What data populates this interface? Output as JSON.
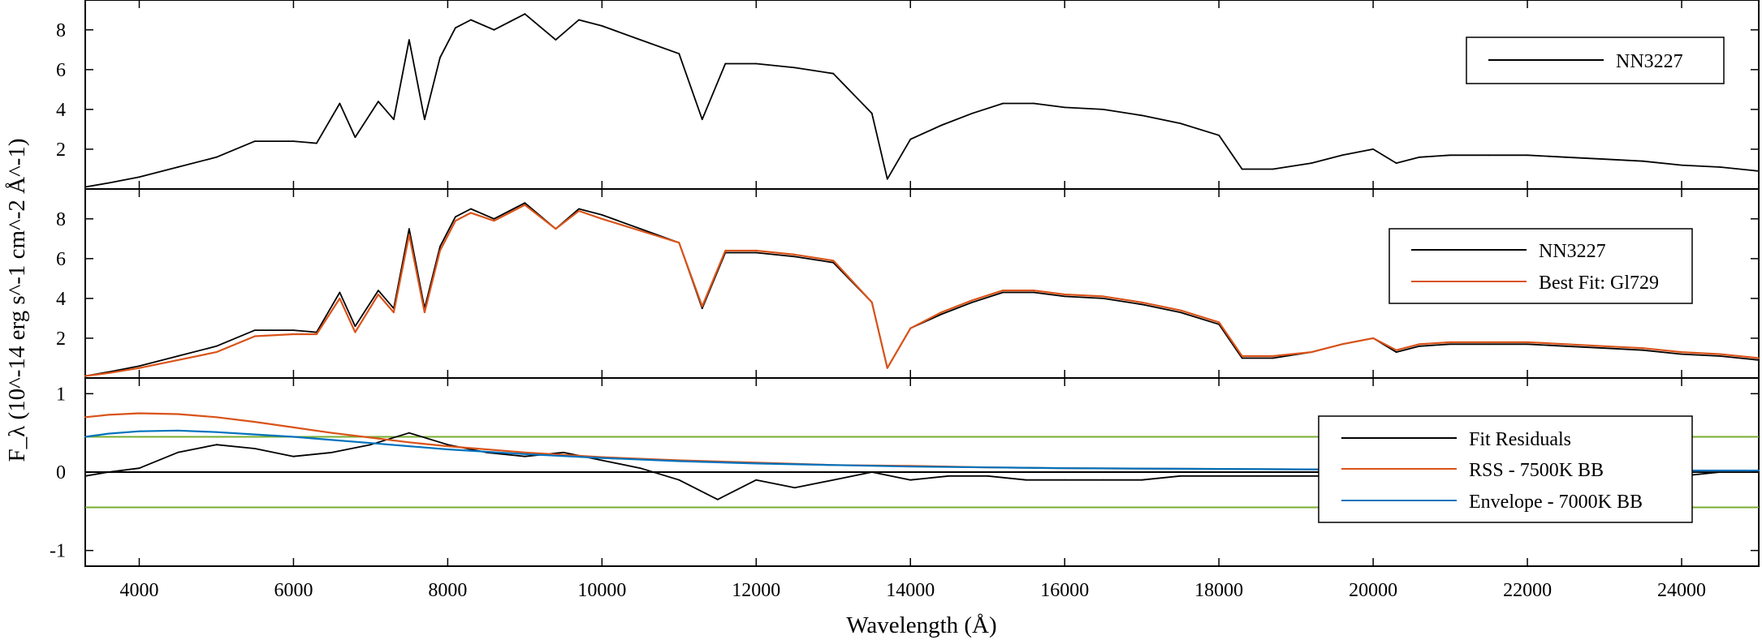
{
  "chart_data": [
    {
      "type": "line",
      "panel": "top",
      "yticks": [
        "2",
        "4",
        "6",
        "8"
      ],
      "ylim": [
        0,
        9.5
      ],
      "xlim": [
        3300,
        25000
      ],
      "grid": false,
      "legend_position": "top-right",
      "series": [
        {
          "name": "NN3227",
          "color": "#000000",
          "x": [
            3300,
            3600,
            4000,
            4500,
            5000,
            5500,
            6000,
            6300,
            6600,
            6800,
            7100,
            7300,
            7500,
            7700,
            7900,
            8100,
            8300,
            8600,
            9000,
            9400,
            9700,
            10000,
            10500,
            11000,
            11300,
            11600,
            12000,
            12500,
            13000,
            13500,
            13700,
            14000,
            14400,
            14800,
            15200,
            15600,
            16000,
            16500,
            17000,
            17500,
            18000,
            18300,
            18700,
            19200,
            19600,
            20000,
            20300,
            20600,
            21000,
            21500,
            22000,
            22500,
            23000,
            23500,
            24000,
            24500,
            25000
          ],
          "y": [
            0.1,
            0.3,
            0.6,
            1.1,
            1.6,
            2.4,
            2.4,
            2.3,
            4.3,
            2.6,
            4.4,
            3.5,
            7.5,
            3.5,
            6.6,
            8.1,
            8.5,
            8.0,
            8.8,
            7.5,
            8.5,
            8.2,
            7.5,
            6.8,
            3.5,
            6.3,
            6.3,
            6.1,
            5.8,
            3.8,
            0.5,
            2.5,
            3.2,
            3.8,
            4.3,
            4.3,
            4.1,
            4.0,
            3.7,
            3.3,
            2.7,
            1.0,
            1.0,
            1.3,
            1.7,
            2.0,
            1.3,
            1.6,
            1.7,
            1.7,
            1.7,
            1.6,
            1.5,
            1.4,
            1.2,
            1.1,
            0.9
          ]
        }
      ]
    },
    {
      "type": "line",
      "panel": "middle",
      "yticks": [
        "2",
        "4",
        "6",
        "8"
      ],
      "ylim": [
        0,
        9.5
      ],
      "xlim": [
        3300,
        25000
      ],
      "grid": false,
      "legend_position": "top-right",
      "series": [
        {
          "name": "NN3227",
          "color": "#000000",
          "x": [
            3300,
            3600,
            4000,
            4500,
            5000,
            5500,
            6000,
            6300,
            6600,
            6800,
            7100,
            7300,
            7500,
            7700,
            7900,
            8100,
            8300,
            8600,
            9000,
            9400,
            9700,
            10000,
            10500,
            11000,
            11300,
            11600,
            12000,
            12500,
            13000,
            13500,
            13700,
            14000,
            14400,
            14800,
            15200,
            15600,
            16000,
            16500,
            17000,
            17500,
            18000,
            18300,
            18700,
            19200,
            19600,
            20000,
            20300,
            20600,
            21000,
            21500,
            22000,
            22500,
            23000,
            23500,
            24000,
            24500,
            25000
          ],
          "y": [
            0.1,
            0.3,
            0.6,
            1.1,
            1.6,
            2.4,
            2.4,
            2.3,
            4.3,
            2.6,
            4.4,
            3.5,
            7.5,
            3.5,
            6.6,
            8.1,
            8.5,
            8.0,
            8.8,
            7.5,
            8.5,
            8.2,
            7.5,
            6.8,
            3.5,
            6.3,
            6.3,
            6.1,
            5.8,
            3.8,
            0.5,
            2.5,
            3.2,
            3.8,
            4.3,
            4.3,
            4.1,
            4.0,
            3.7,
            3.3,
            2.7,
            1.0,
            1.0,
            1.3,
            1.7,
            2.0,
            1.3,
            1.6,
            1.7,
            1.7,
            1.7,
            1.6,
            1.5,
            1.4,
            1.2,
            1.1,
            0.9
          ]
        },
        {
          "name": "Best Fit: Gl729",
          "color": "#d95319",
          "x": [
            3300,
            3600,
            4000,
            4500,
            5000,
            5500,
            6000,
            6300,
            6600,
            6800,
            7100,
            7300,
            7500,
            7700,
            7900,
            8100,
            8300,
            8600,
            9000,
            9400,
            9700,
            10000,
            10500,
            11000,
            11300,
            11600,
            12000,
            12500,
            13000,
            13500,
            13700,
            14000,
            14400,
            14800,
            15200,
            15600,
            16000,
            16500,
            17000,
            17500,
            18000,
            18300,
            18700,
            19200,
            19600,
            20000,
            20300,
            20600,
            21000,
            21500,
            22000,
            22500,
            23000,
            23500,
            24000,
            24500,
            25000
          ],
          "y": [
            0.1,
            0.25,
            0.5,
            0.9,
            1.3,
            2.1,
            2.2,
            2.2,
            4.0,
            2.3,
            4.2,
            3.3,
            7.2,
            3.3,
            6.4,
            7.9,
            8.3,
            7.9,
            8.7,
            7.5,
            8.4,
            8.0,
            7.4,
            6.8,
            3.6,
            6.4,
            6.4,
            6.2,
            5.9,
            3.8,
            0.5,
            2.5,
            3.3,
            3.9,
            4.4,
            4.4,
            4.2,
            4.1,
            3.8,
            3.4,
            2.8,
            1.1,
            1.1,
            1.3,
            1.7,
            2.0,
            1.4,
            1.7,
            1.8,
            1.8,
            1.8,
            1.7,
            1.6,
            1.5,
            1.3,
            1.2,
            1.0
          ]
        }
      ]
    },
    {
      "type": "line",
      "panel": "bottom",
      "yticks": [
        "-1",
        "0",
        "1"
      ],
      "ylim": [
        -1.2,
        1.2
      ],
      "xlim": [
        3300,
        25000
      ],
      "xticks": [
        "4000",
        "6000",
        "8000",
        "10000",
        "12000",
        "14000",
        "16000",
        "18000",
        "20000",
        "22000",
        "24000"
      ],
      "xlabel": "Wavelength (Å)",
      "ylabel": "F_λ (10^-14 erg s^-1 cm^-2 Å^-1)",
      "grid": false,
      "legend_position": "right",
      "threshold_lines": [
        0.45,
        -0.45
      ],
      "series": [
        {
          "name": "Fit Residuals",
          "color": "#000000",
          "x": [
            3300,
            3600,
            4000,
            4500,
            5000,
            5500,
            6000,
            6500,
            7000,
            7500,
            8000,
            8500,
            9000,
            9500,
            10000,
            10500,
            11000,
            11500,
            12000,
            12500,
            13000,
            13500,
            14000,
            14500,
            15000,
            15500,
            16000,
            16500,
            17000,
            17500,
            18000,
            18500,
            19000,
            19500,
            20000,
            20500,
            21000,
            21500,
            22000,
            22500,
            23000,
            23500,
            24000,
            24500,
            25000
          ],
          "y": [
            -0.05,
            0.0,
            0.05,
            0.25,
            0.35,
            0.3,
            0.2,
            0.25,
            0.35,
            0.5,
            0.35,
            0.25,
            0.2,
            0.25,
            0.15,
            0.05,
            -0.1,
            -0.35,
            -0.1,
            -0.2,
            -0.1,
            0.0,
            -0.1,
            -0.05,
            -0.05,
            -0.1,
            -0.1,
            -0.1,
            -0.1,
            -0.05,
            -0.05,
            -0.05,
            -0.05,
            -0.05,
            -0.05,
            -0.05,
            -0.05,
            -0.05,
            -0.05,
            -0.05,
            -0.05,
            -0.05,
            -0.05,
            0.0,
            0.0
          ]
        },
        {
          "name": "RSS - 7500K BB",
          "color": "#d95319",
          "x": [
            3300,
            3600,
            4000,
            4500,
            5000,
            5500,
            6000,
            6500,
            7000,
            7500,
            8000,
            9000,
            10000,
            11000,
            12000,
            13000,
            14000,
            15000,
            16000,
            18000,
            20000,
            22000,
            24000,
            25000
          ],
          "y": [
            0.7,
            0.73,
            0.75,
            0.74,
            0.7,
            0.64,
            0.57,
            0.5,
            0.44,
            0.38,
            0.33,
            0.25,
            0.19,
            0.15,
            0.12,
            0.09,
            0.08,
            0.06,
            0.05,
            0.04,
            0.03,
            0.03,
            0.02,
            0.02
          ]
        },
        {
          "name": "Envelope - 7000K BB",
          "color": "#0072bd",
          "x": [
            3300,
            3600,
            4000,
            4500,
            5000,
            5500,
            6000,
            6500,
            7000,
            7500,
            8000,
            9000,
            10000,
            11000,
            12000,
            13000,
            14000,
            15000,
            16000,
            18000,
            20000,
            22000,
            24000,
            25000
          ],
          "y": [
            0.45,
            0.49,
            0.52,
            0.53,
            0.51,
            0.48,
            0.45,
            0.41,
            0.37,
            0.33,
            0.29,
            0.23,
            0.18,
            0.14,
            0.11,
            0.09,
            0.07,
            0.06,
            0.05,
            0.04,
            0.03,
            0.02,
            0.02,
            0.02
          ]
        }
      ]
    }
  ]
}
